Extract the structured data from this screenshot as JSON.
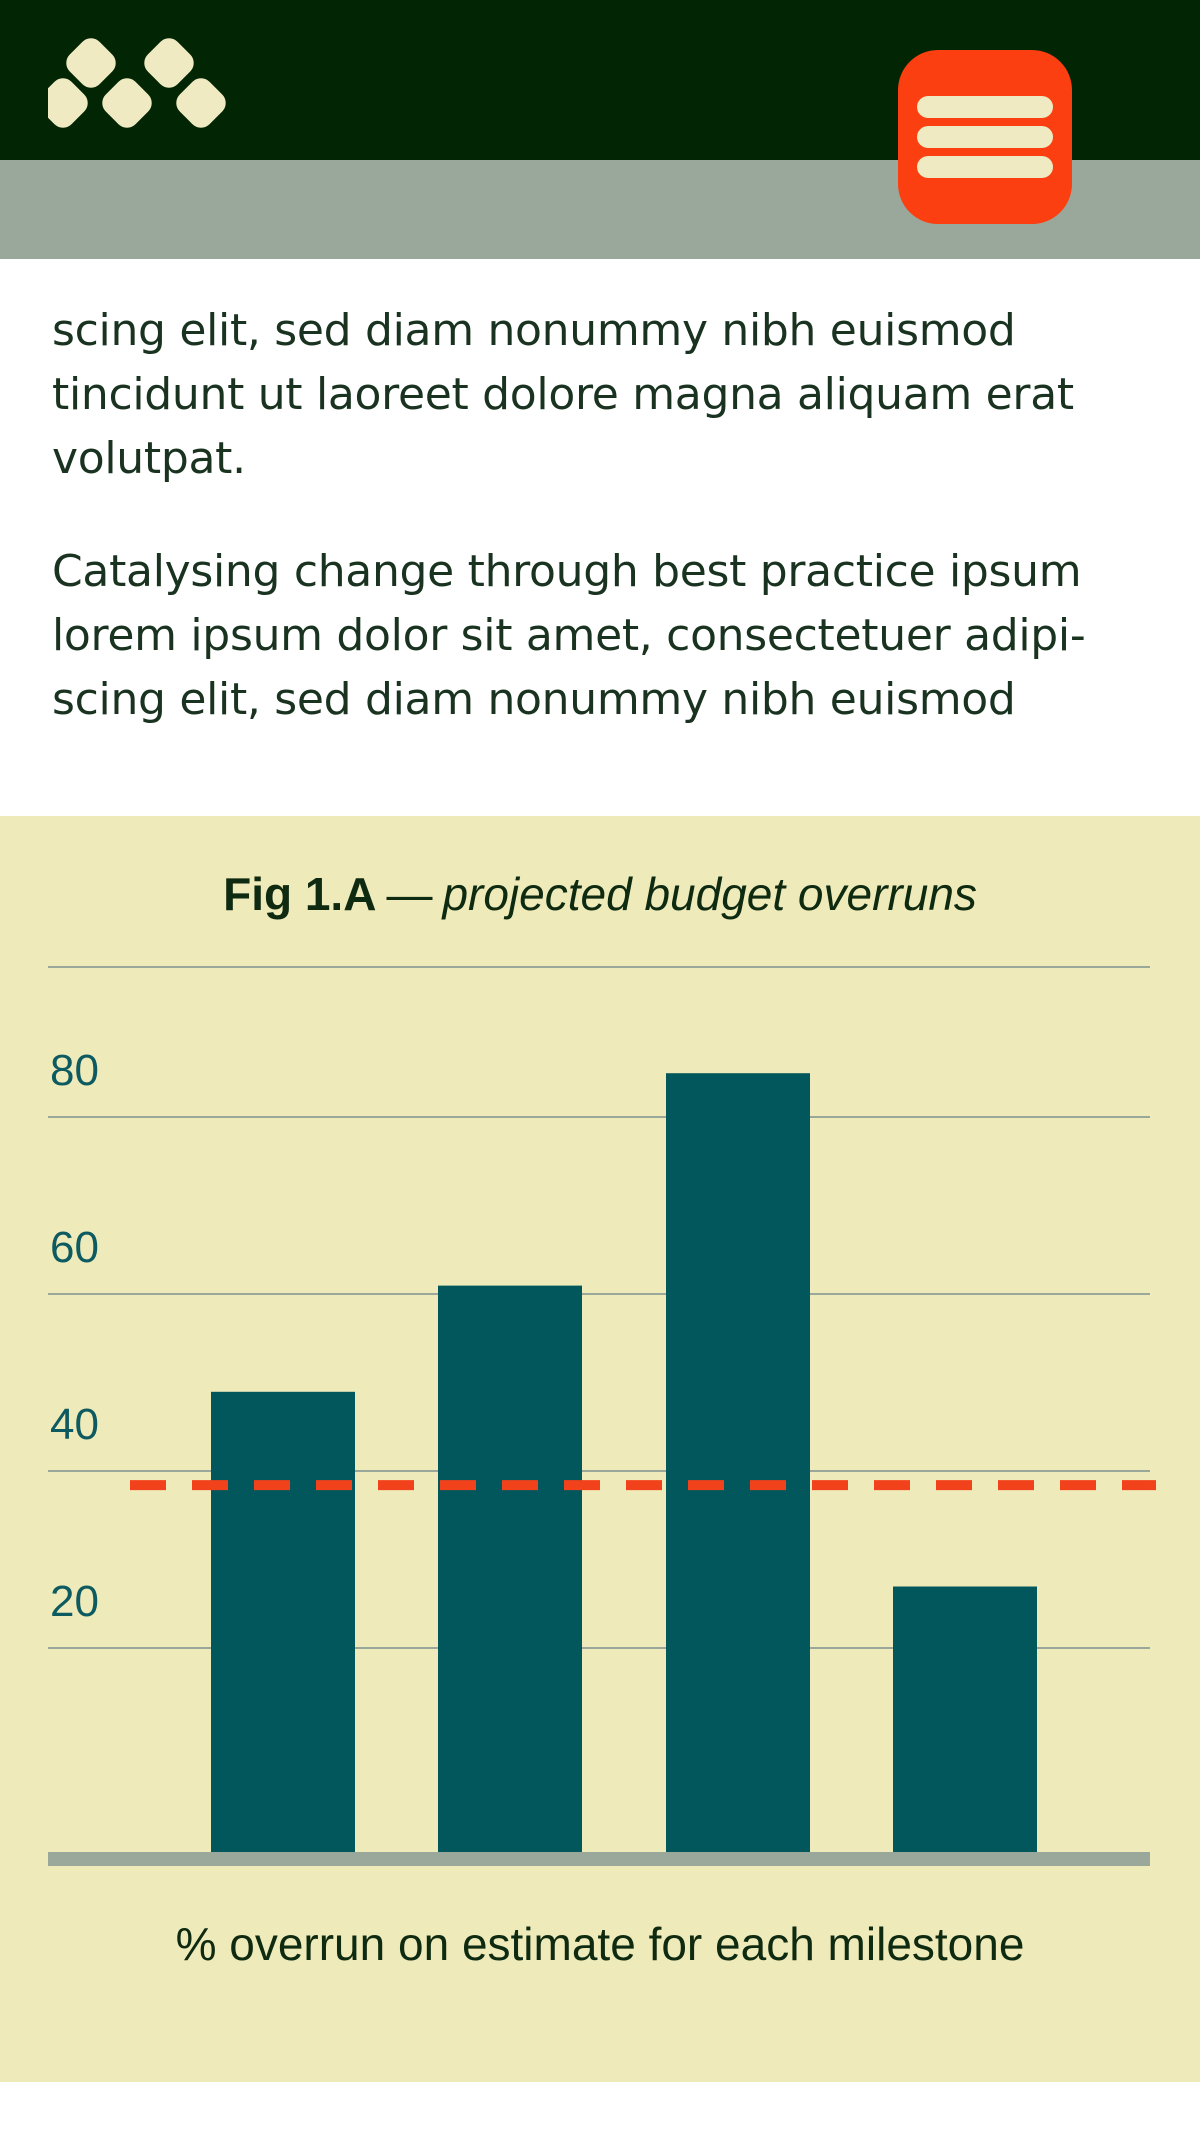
{
  "header": {
    "logo_icon": "diamond-cluster-logo-icon",
    "menu_icon": "hamburger-menu-icon",
    "colors": {
      "header_bg": "#022604",
      "subheader_bg": "#9aa89b",
      "menu_bg": "#fb3f10",
      "logo": "#efeac2"
    }
  },
  "content": {
    "paragraphs": [
      "scing elit, sed diam nonummy nibh euismod tincidunt ut laoreet dolore magna aliquam erat volutpat.",
      "Catalysing change through best practice ipsum lorem ipsum dolor sit amet, consectetuer adipi-scing elit, sed diam nonummy nibh euismod"
    ]
  },
  "figure": {
    "label": "Fig 1.A",
    "dash": "—",
    "description": "projected budget overruns",
    "caption": "% overrun on estimate for each milestone"
  },
  "chart_data": {
    "type": "bar",
    "title": "Fig 1.A — projected budget overruns",
    "xlabel": "% overrun on estimate for each milestone",
    "ylabel": "",
    "values": [
      52,
      64,
      88,
      30
    ],
    "ylim": [
      0,
      100
    ],
    "yticks": [
      20,
      40,
      60,
      80
    ],
    "reference_line": {
      "value": 41,
      "style": "dashed",
      "color": "#f2421b"
    },
    "grid": true,
    "colors": {
      "bar": "#02575d",
      "grid": "#9aa89b",
      "tick_label": "#0d5a60",
      "baseline": "#9aa89b",
      "background": "#efeaba"
    }
  }
}
